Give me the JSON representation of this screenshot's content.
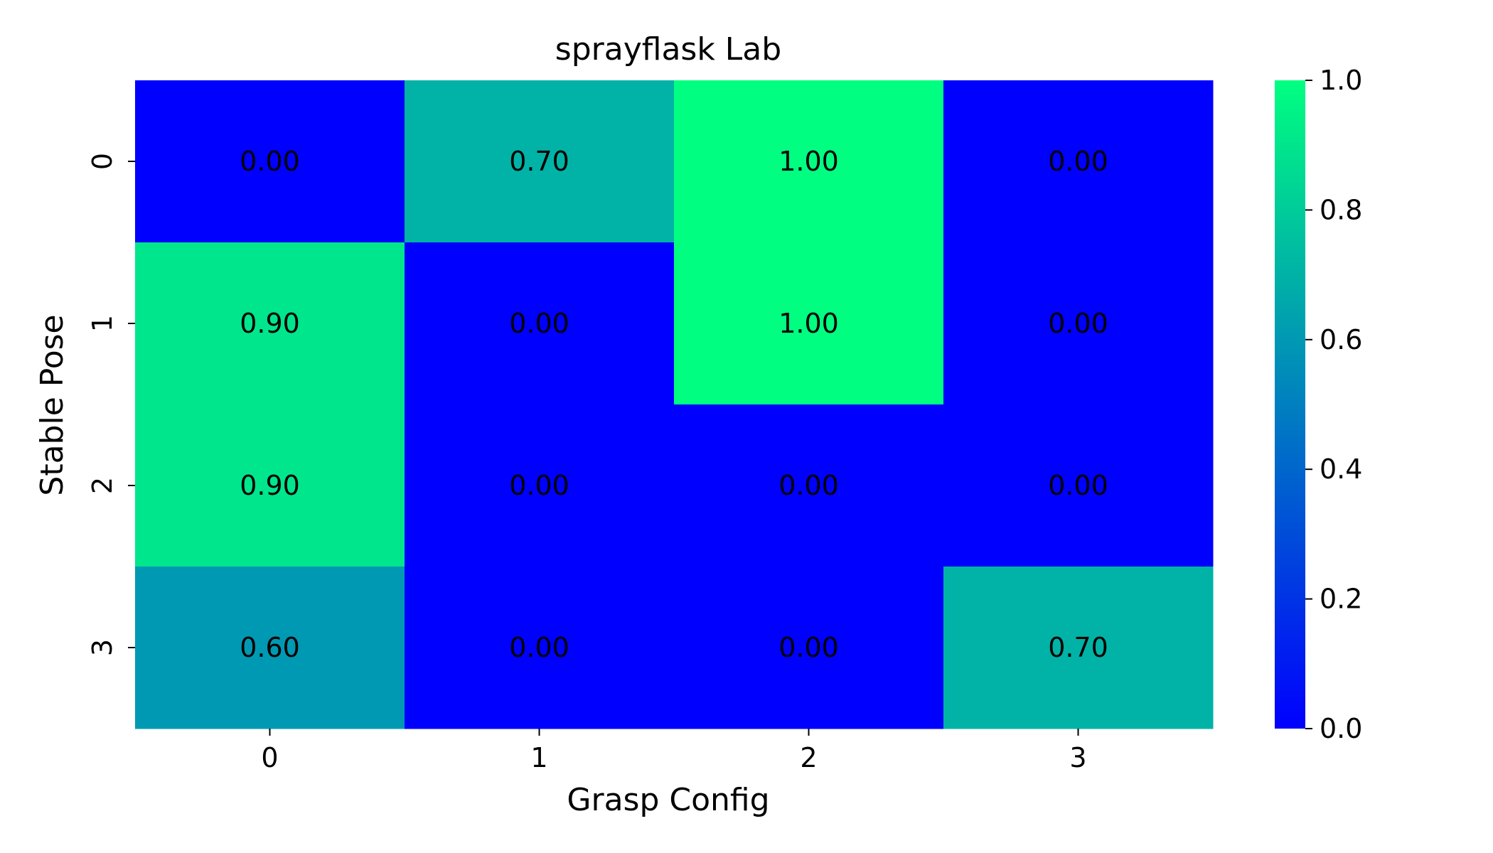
{
  "chart_data": {
    "type": "heatmap",
    "title": "sprayflask Lab",
    "xlabel": "Grasp Config",
    "ylabel": "Stable Pose",
    "x_categories": [
      "0",
      "1",
      "2",
      "3"
    ],
    "y_categories": [
      "0",
      "1",
      "2",
      "3"
    ],
    "values": [
      [
        0.0,
        0.7,
        1.0,
        0.0
      ],
      [
        0.9,
        0.0,
        1.0,
        0.0
      ],
      [
        0.9,
        0.0,
        0.0,
        0.0
      ],
      [
        0.6,
        0.0,
        0.0,
        0.7
      ]
    ],
    "cell_labels": [
      [
        "0.00",
        "0.70",
        "1.00",
        "0.00"
      ],
      [
        "0.90",
        "0.00",
        "1.00",
        "0.00"
      ],
      [
        "0.90",
        "0.00",
        "0.00",
        "0.00"
      ],
      [
        "0.60",
        "0.00",
        "0.00",
        "0.70"
      ]
    ],
    "colormap": "winter",
    "colormap_low": "#0000ff",
    "colormap_high": "#00ff80",
    "vmin": 0.0,
    "vmax": 1.0,
    "colorbar_ticks": [
      "0.0",
      "0.2",
      "0.4",
      "0.6",
      "0.8",
      "1.0"
    ],
    "colorbar_tick_values": [
      0.0,
      0.2,
      0.4,
      0.6,
      0.8,
      1.0
    ],
    "grid": false,
    "colorbar_placement": "right"
  }
}
